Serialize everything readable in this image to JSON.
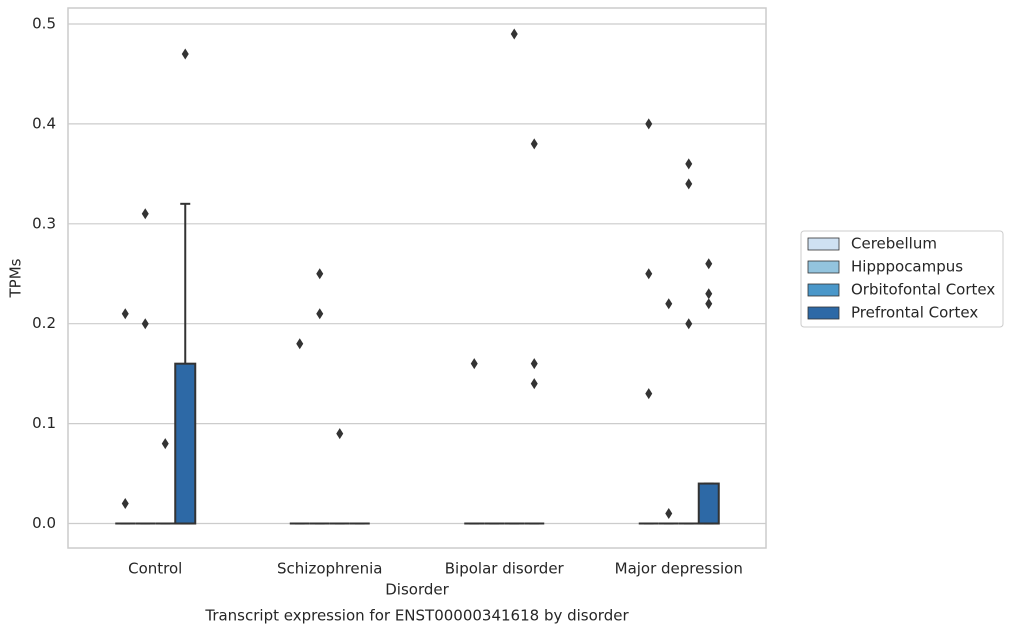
{
  "chart_data": {
    "type": "box",
    "title": "Transcript expression for ENST00000341618 by disorder",
    "xlabel": "Disorder",
    "ylabel": "TPMs",
    "categories": [
      "Control",
      "Schizophrenia",
      "Bipolar disorder",
      "Major depression"
    ],
    "ylim": [
      -0.0245,
      0.516
    ],
    "yticks": [
      {
        "value": 0,
        "label": "0.0"
      },
      0.1,
      0.2,
      0.3,
      0.4,
      0.5
    ],
    "grid": true,
    "legend": "right",
    "series": [
      {
        "name": "Cerebellum",
        "color": "#cfe1f2",
        "boxes": [
          {
            "whislo": 0,
            "q1": 0,
            "median": 0,
            "q3": 0,
            "whishi": 0,
            "fliers": [
              0.21,
              0.02
            ]
          },
          {
            "whislo": 0,
            "q1": 0,
            "median": 0,
            "q3": 0,
            "whishi": 0,
            "fliers": [
              0.18
            ]
          },
          {
            "whislo": 0,
            "q1": 0,
            "median": 0,
            "q3": 0,
            "whishi": 0,
            "fliers": [
              0.16
            ]
          },
          {
            "whislo": 0,
            "q1": 0,
            "median": 0,
            "q3": 0,
            "whishi": 0,
            "fliers": [
              0.4,
              0.25,
              0.13
            ]
          }
        ]
      },
      {
        "name": "Hipppocampus",
        "color": "#93c4de",
        "boxes": [
          {
            "whislo": 0,
            "q1": 0,
            "median": 0,
            "q3": 0,
            "whishi": 0,
            "fliers": [
              0.31,
              0.2
            ]
          },
          {
            "whislo": 0,
            "q1": 0,
            "median": 0,
            "q3": 0,
            "whishi": 0,
            "fliers": [
              0.25,
              0.21
            ]
          },
          {
            "whislo": 0,
            "q1": 0,
            "median": 0,
            "q3": 0,
            "whishi": 0,
            "fliers": []
          },
          {
            "whislo": 0,
            "q1": 0,
            "median": 0,
            "q3": 0,
            "whishi": 0,
            "fliers": [
              0.22,
              0.01
            ]
          }
        ]
      },
      {
        "name": "Orbitofontal Cortex",
        "color": "#4a97c9",
        "boxes": [
          {
            "whislo": 0,
            "q1": 0,
            "median": 0,
            "q3": 0,
            "whishi": 0,
            "fliers": [
              0.08
            ]
          },
          {
            "whislo": 0,
            "q1": 0,
            "median": 0,
            "q3": 0,
            "whishi": 0,
            "fliers": [
              0.09
            ]
          },
          {
            "whislo": 0,
            "q1": 0,
            "median": 0,
            "q3": 0,
            "whishi": 0,
            "fliers": [
              0.49
            ]
          },
          {
            "whislo": 0,
            "q1": 0,
            "median": 0,
            "q3": 0,
            "whishi": 0,
            "fliers": [
              0.36,
              0.34,
              0.2
            ]
          }
        ]
      },
      {
        "name": "Prefrontal Cortex",
        "color": "#2d69a6",
        "boxes": [
          {
            "whislo": 0,
            "q1": 0,
            "median": 0,
            "q3": 0.16,
            "whishi": 0.32,
            "fliers": [
              0.47
            ]
          },
          {
            "whislo": 0,
            "q1": 0,
            "median": 0,
            "q3": 0,
            "whishi": 0,
            "fliers": []
          },
          {
            "whislo": 0,
            "q1": 0,
            "median": 0,
            "q3": 0,
            "whishi": 0,
            "fliers": [
              0.38,
              0.16,
              0.14
            ]
          },
          {
            "whislo": 0,
            "q1": 0,
            "median": 0,
            "q3": 0.04,
            "whishi": 0.04,
            "fliers": [
              0.26,
              0.23,
              0.22
            ]
          }
        ]
      }
    ]
  }
}
